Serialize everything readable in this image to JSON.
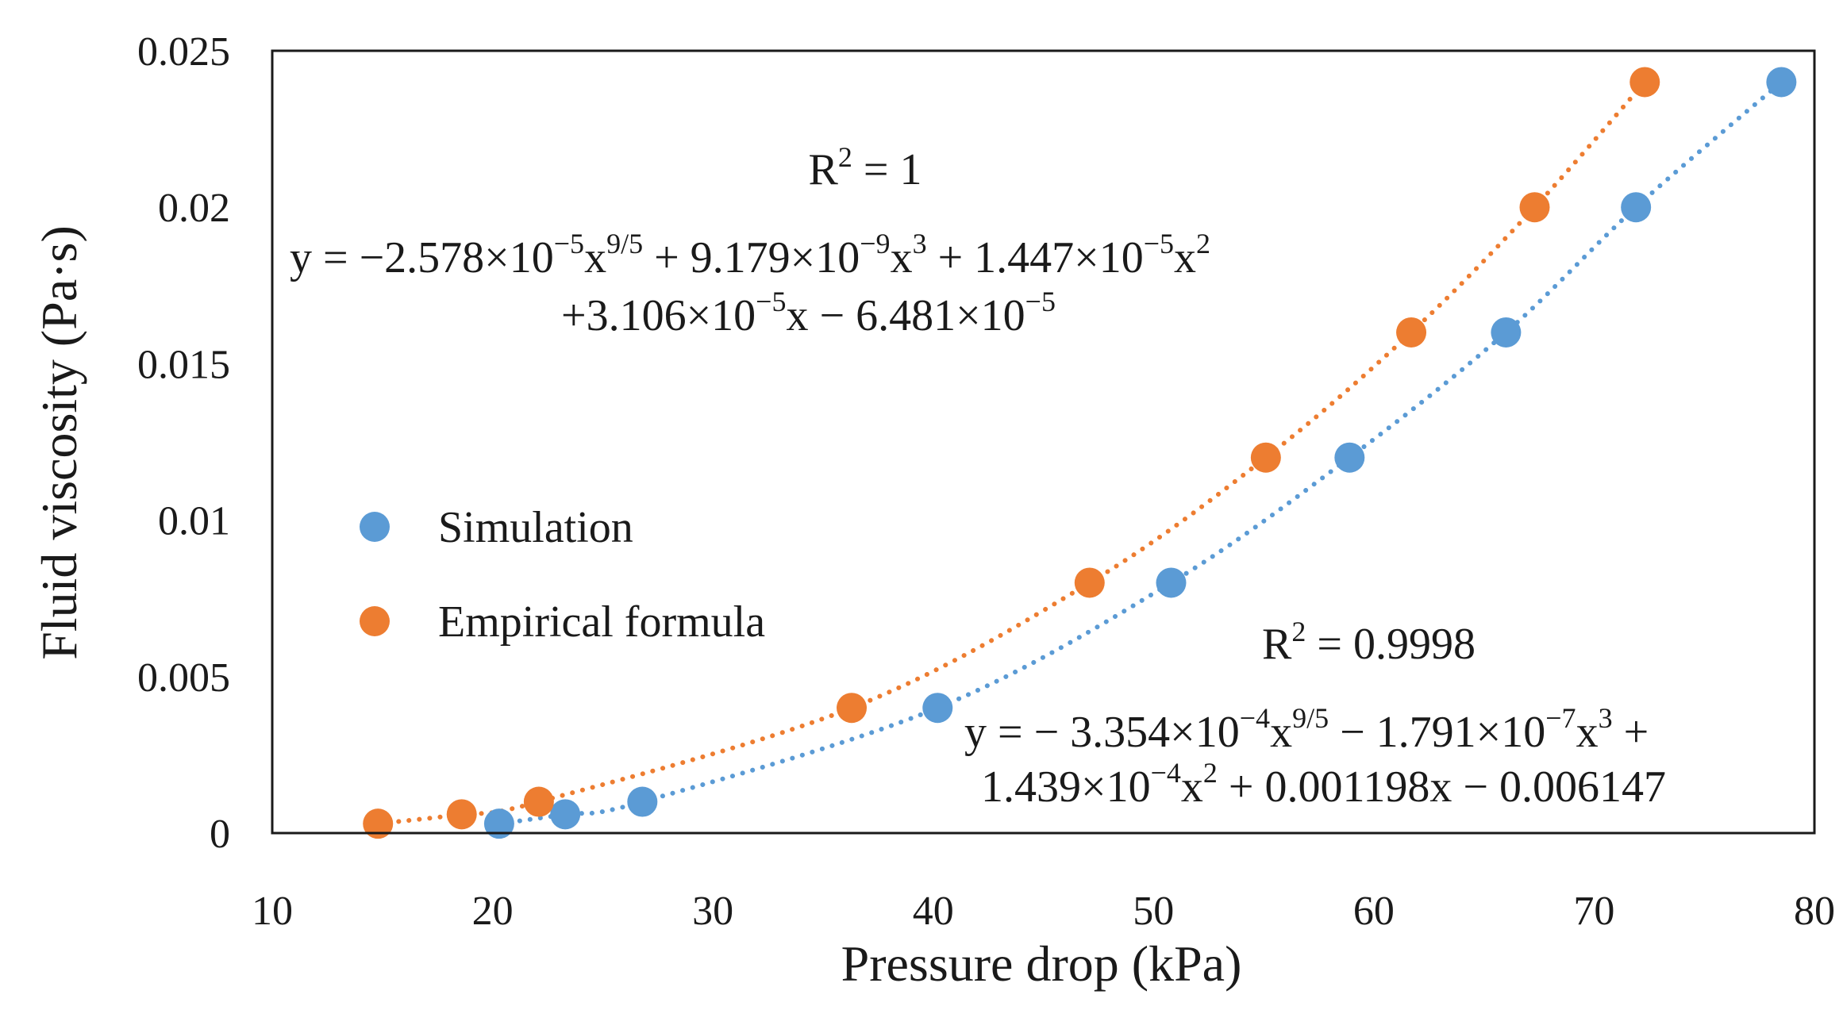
{
  "chart_data": {
    "type": "scatter",
    "title": "",
    "xlabel": "Pressure drop (kPa)",
    "ylabel": "Fluid viscosity (Pa·s)",
    "xlim": [
      10,
      80
    ],
    "ylim": [
      0,
      0.025
    ],
    "x_ticks": [
      "10",
      "20",
      "30",
      "40",
      "50",
      "60",
      "70",
      "80"
    ],
    "y_ticks": [
      "0",
      "0.005",
      "0.01",
      "0.015",
      "0.02",
      "0.025"
    ],
    "grid": false,
    "legend_position": "center-left",
    "series": [
      {
        "name": "Simulation",
        "color": "#5b9bd5",
        "x": [
          20.3,
          23.3,
          26.8,
          40.2,
          50.8,
          58.9,
          66.0,
          71.9,
          78.5
        ],
        "y": [
          0.0003,
          0.0006,
          0.001,
          0.004,
          0.008,
          0.012,
          0.016,
          0.02,
          0.024
        ],
        "trendline": "dotted"
      },
      {
        "name": "Empirical formula",
        "color": "#ed7d31",
        "x": [
          14.8,
          18.6,
          22.1,
          36.3,
          47.1,
          55.1,
          61.7,
          67.3,
          72.3
        ],
        "y": [
          0.0003,
          0.0006,
          0.001,
          0.004,
          0.008,
          0.012,
          0.016,
          0.02,
          0.024
        ],
        "trendline": "dotted"
      }
    ],
    "annotations": {
      "empirical_r2": "R² = 1",
      "empirical_eq_line1": "y = −2.578×10−5x9/5 + 9.179×10−9x3 + 1.447×10−5x2",
      "empirical_eq_line2": "+3.106×10−5x − 6.481×10−5",
      "simulation_r2": "R² = 0.9998",
      "simulation_eq_line1": "y = − 3.354×10−4x9/5 − 1.791×10−7x3 +",
      "simulation_eq_line2": "1.439×10−4x2 + 0.001198x − 0.006147"
    }
  }
}
